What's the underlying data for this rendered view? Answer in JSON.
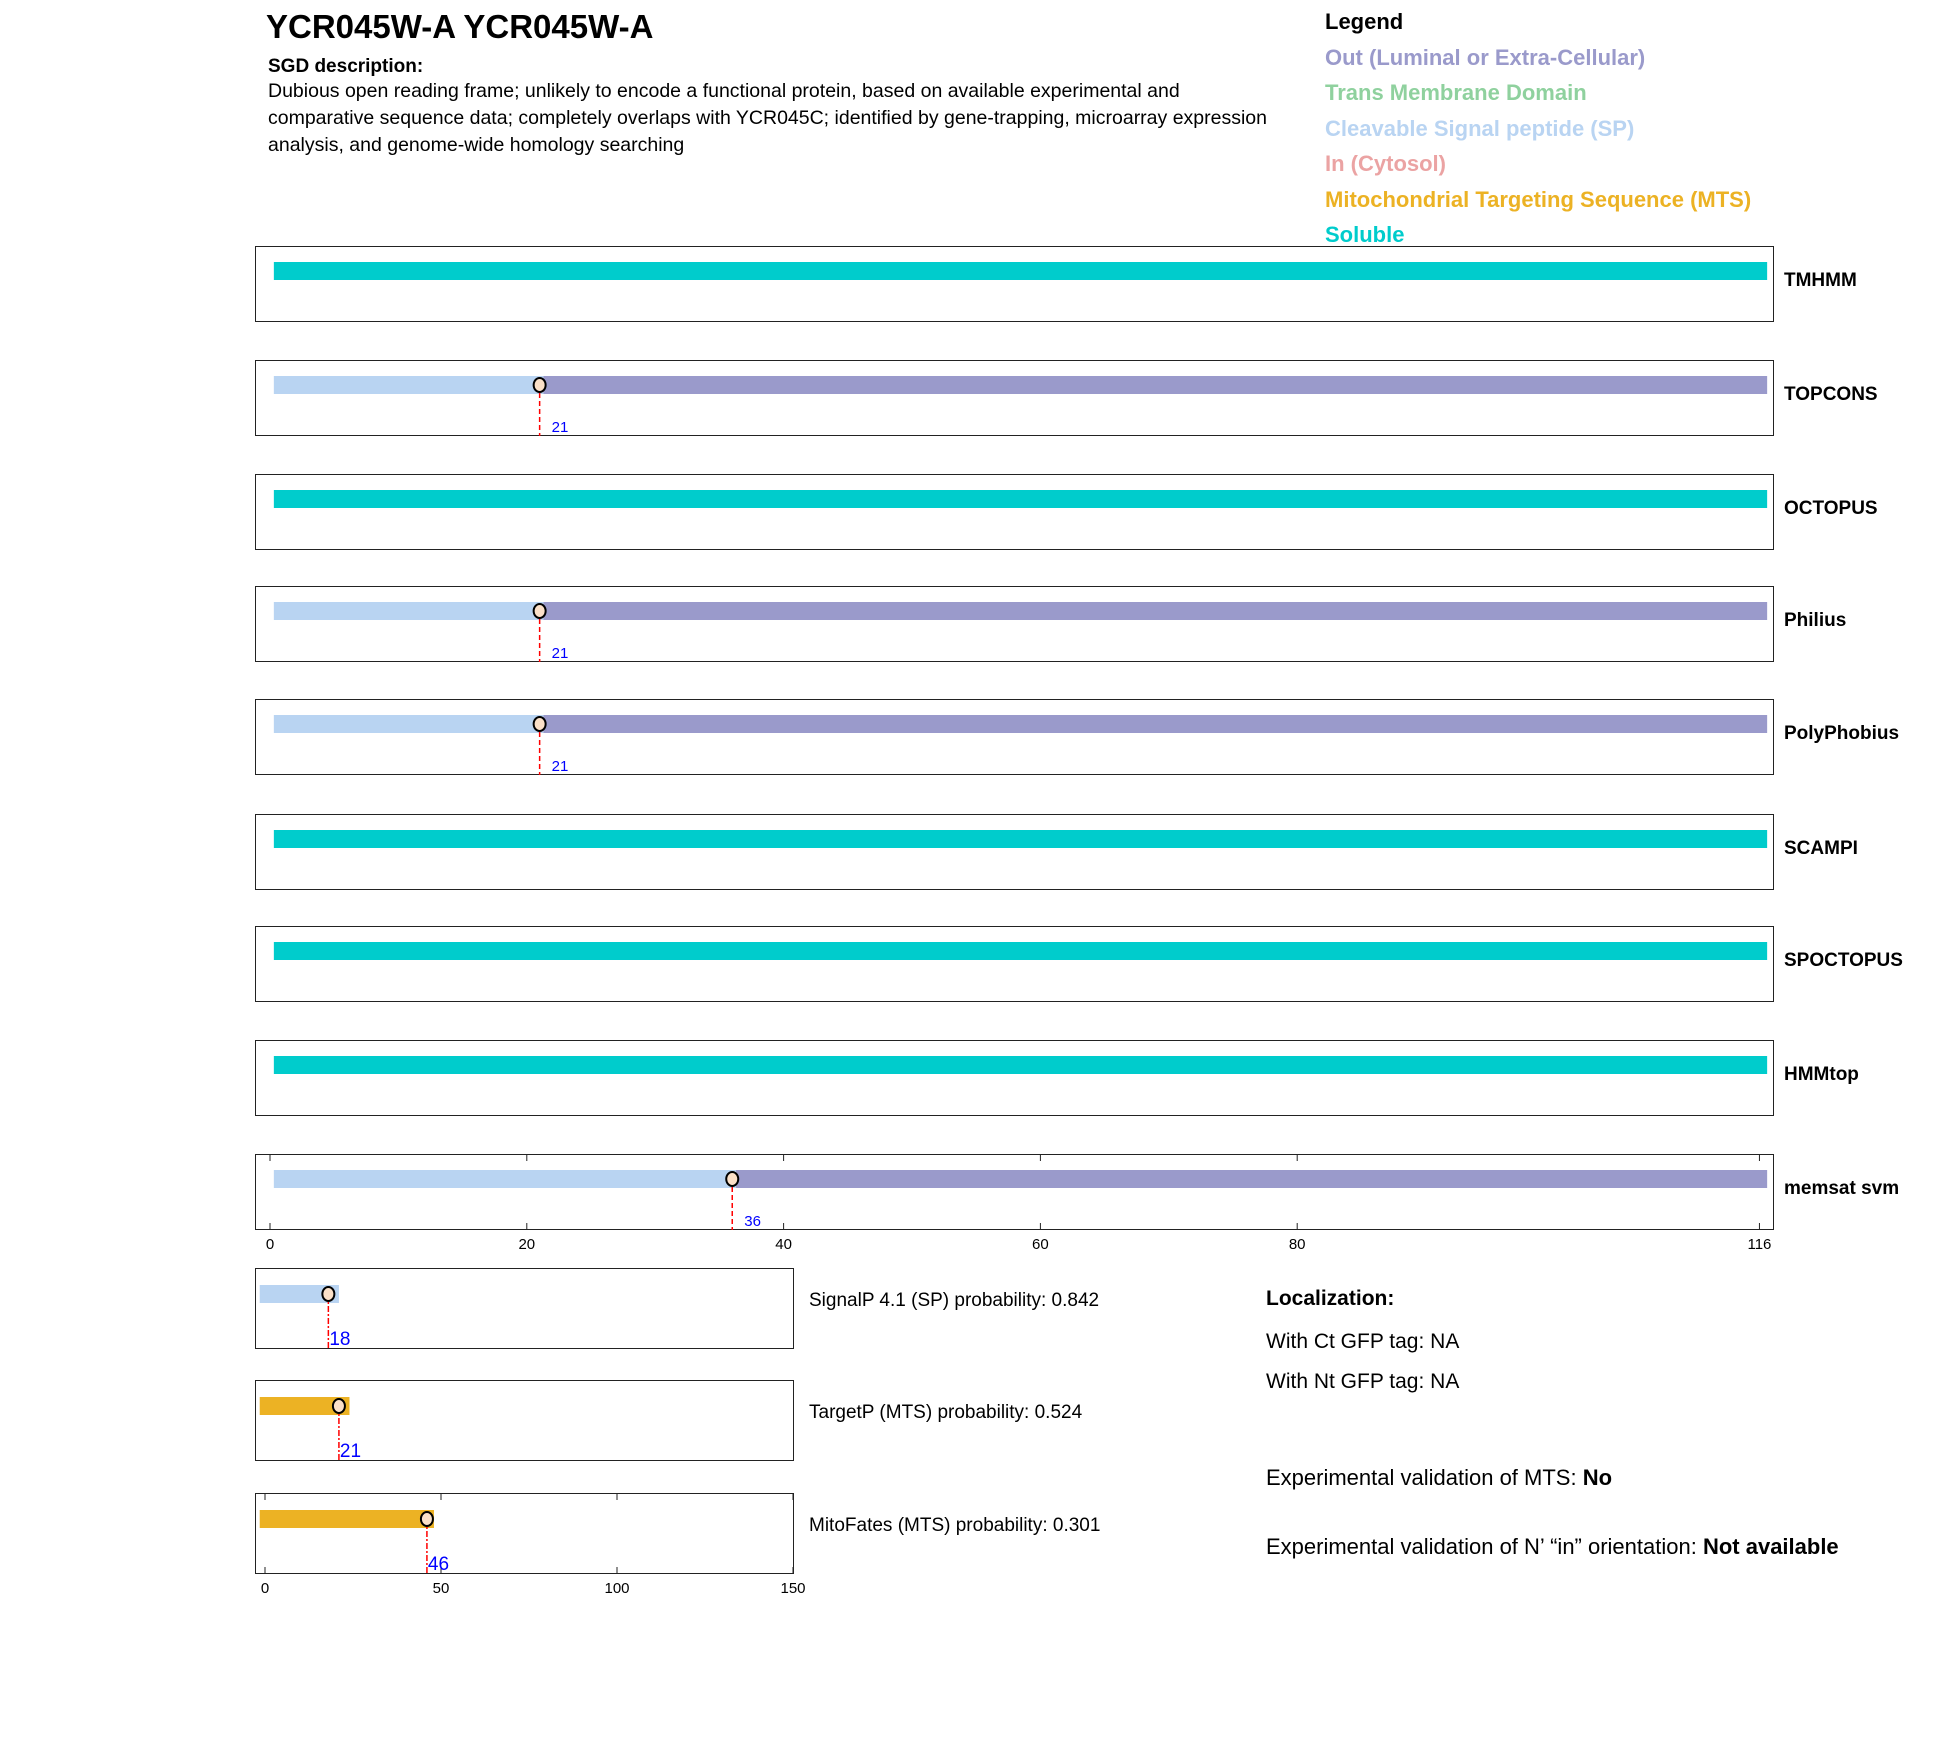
{
  "header": {
    "title": "YCR045W-A  YCR045W-A",
    "sgd_label": "SGD description:",
    "sgd_text": "Dubious open reading frame; unlikely to encode a functional protein, based on available experimental and comparative sequence data; completely overlaps with YCR045C; identified by gene-trapping, microarray expression analysis, and genome-wide homology searching"
  },
  "legend": {
    "title": "Legend",
    "items": [
      {
        "label": "Out (Luminal or Extra-Cellular)",
        "color": "#9a9acb"
      },
      {
        "label": "Trans Membrane Domain",
        "color": "#8fd19e"
      },
      {
        "label": "Cleavable Signal peptide (SP)",
        "color": "#b9d4f2"
      },
      {
        "label": "In (Cytosol)",
        "color": "#eba3a3"
      },
      {
        "label": "Mitochondrial Targeting Sequence (MTS)",
        "color": "#ecb224"
      },
      {
        "label": "Soluble",
        "color": "#00cccc"
      }
    ]
  },
  "chart_data": [
    {
      "type": "bar",
      "title": "",
      "xlim": [
        0,
        116
      ],
      "xticks": [
        "0",
        "20",
        "40",
        "60",
        "80",
        "116"
      ],
      "tracks": [
        {
          "name": "TMHMM",
          "segments": [
            {
              "start": 0,
              "end": 116,
              "type": "Soluble"
            }
          ]
        },
        {
          "name": "TOPCONS",
          "segments": [
            {
              "start": 0,
              "end": 21,
              "type": "SP"
            },
            {
              "start": 21,
              "end": 116,
              "type": "Out"
            }
          ],
          "cleavage": 21
        },
        {
          "name": "OCTOPUS",
          "segments": [
            {
              "start": 0,
              "end": 116,
              "type": "Soluble"
            }
          ]
        },
        {
          "name": "Philius",
          "segments": [
            {
              "start": 0,
              "end": 21,
              "type": "SP"
            },
            {
              "start": 21,
              "end": 116,
              "type": "Out"
            }
          ],
          "cleavage": 21
        },
        {
          "name": "PolyPhobius",
          "segments": [
            {
              "start": 0,
              "end": 21,
              "type": "SP"
            },
            {
              "start": 21,
              "end": 116,
              "type": "Out"
            }
          ],
          "cleavage": 21
        },
        {
          "name": "SCAMPI",
          "segments": [
            {
              "start": 0,
              "end": 116,
              "type": "Soluble"
            }
          ]
        },
        {
          "name": "SPOCTOPUS",
          "segments": [
            {
              "start": 0,
              "end": 116,
              "type": "Soluble"
            }
          ]
        },
        {
          "name": "HMMtop",
          "segments": [
            {
              "start": 0,
              "end": 116,
              "type": "Soluble"
            }
          ]
        },
        {
          "name": "memsat svm",
          "segments": [
            {
              "start": 0,
              "end": 36,
              "type": "SP"
            },
            {
              "start": 36,
              "end": 116,
              "type": "Out"
            }
          ],
          "cleavage": 36
        }
      ]
    },
    {
      "type": "bar",
      "title": "",
      "xlim": [
        0,
        150
      ],
      "xticks": [
        "0",
        "50",
        "100",
        "150"
      ],
      "tracks": [
        {
          "name": "SignalP 4.1 (SP) probability: 0.842",
          "segments": [
            {
              "start": 0,
              "end": 21,
              "type": "SP"
            }
          ],
          "cleavage": 18
        },
        {
          "name": "TargetP (MTS) probability: 0.524",
          "segments": [
            {
              "start": 0,
              "end": 24,
              "type": "MTS"
            }
          ],
          "cleavage": 21
        },
        {
          "name": "MitoFates (MTS) probability: 0.301",
          "segments": [
            {
              "start": 0,
              "end": 48,
              "type": "MTS"
            }
          ],
          "cleavage": 46
        }
      ]
    }
  ],
  "localization": {
    "title": "Localization:",
    "ct": "With Ct GFP tag: NA",
    "nt": "With Nt GFP tag: NA",
    "mts_label": "Experimental validation of MTS: ",
    "mts_value": "No",
    "orient_label": "Experimental validation of N’ “in” orientation: ",
    "orient_value": "Not available"
  }
}
